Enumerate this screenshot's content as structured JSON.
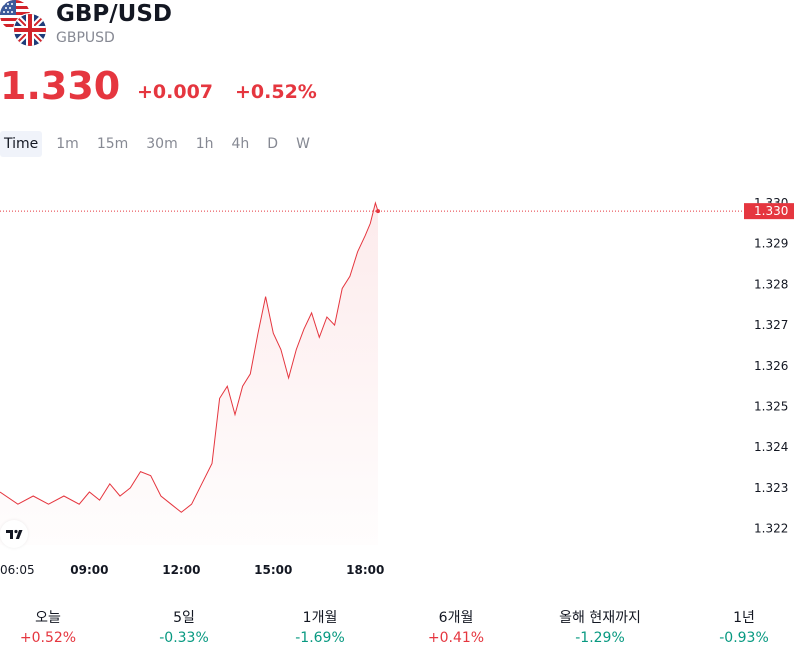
{
  "header": {
    "symbol": "GBP/USD",
    "ticker": "GBPUSD",
    "price": "1.330",
    "change": "+0.007",
    "change_pct": "+0.52%"
  },
  "intervals": [
    "Time",
    "1m",
    "15m",
    "30m",
    "1h",
    "4h",
    "D",
    "W"
  ],
  "active_interval": "Time",
  "colors": {
    "up": "#e5363f",
    "down": "#089981",
    "line": "#e5363f",
    "axis_text": "#131722"
  },
  "icons": [
    "us-flag-icon",
    "uk-flag-icon",
    "tradingview-logo-icon"
  ],
  "chart_data": {
    "type": "area",
    "title": "",
    "xlabel": "",
    "ylabel": "",
    "ylim": [
      1.3215,
      1.3305
    ],
    "x_range": [
      "06:05",
      "18:25"
    ],
    "y_ticks": [
      "1.330",
      "1.329",
      "1.328",
      "1.327",
      "1.326",
      "1.325",
      "1.324",
      "1.323",
      "1.322"
    ],
    "x_ticks": [
      "06:05",
      "09:00",
      "12:00",
      "15:00",
      "18:00"
    ],
    "current_price_label": "1.330",
    "current_price": 1.3298,
    "grid": false,
    "series": [
      {
        "x": [
          "06:05",
          "06:40",
          "07:10",
          "07:40",
          "08:10",
          "08:40",
          "09:00",
          "09:20",
          "09:40",
          "10:00",
          "10:20",
          "10:40",
          "11:00",
          "11:20",
          "11:40",
          "12:00",
          "12:20",
          "12:40",
          "13:00",
          "13:15",
          "13:30",
          "13:45",
          "14:00",
          "14:15",
          "14:30",
          "14:45",
          "15:00",
          "15:15",
          "15:30",
          "15:45",
          "16:00",
          "16:15",
          "16:30",
          "16:45",
          "17:00",
          "17:15",
          "17:30",
          "17:45",
          "18:00",
          "18:10",
          "18:20",
          "18:25"
        ],
        "values": [
          1.3229,
          1.3226,
          1.3228,
          1.3226,
          1.3228,
          1.3226,
          1.3229,
          1.3227,
          1.3231,
          1.3228,
          1.323,
          1.3234,
          1.3233,
          1.3228,
          1.3226,
          1.3224,
          1.3226,
          1.3231,
          1.3236,
          1.3252,
          1.3255,
          1.3248,
          1.3255,
          1.3258,
          1.3268,
          1.3277,
          1.3268,
          1.3264,
          1.3257,
          1.3264,
          1.3269,
          1.3273,
          1.3267,
          1.3272,
          1.327,
          1.3279,
          1.3282,
          1.3288,
          1.3292,
          1.3295,
          1.33,
          1.3298
        ]
      }
    ]
  },
  "performance": [
    {
      "label": "오늘",
      "value": "+0.52%",
      "dir": "up"
    },
    {
      "label": "5일",
      "value": "-0.33%",
      "dir": "down"
    },
    {
      "label": "1개월",
      "value": "-1.69%",
      "dir": "down"
    },
    {
      "label": "6개월",
      "value": "+0.41%",
      "dir": "up"
    },
    {
      "label": "올해 현재까지",
      "value": "-1.29%",
      "dir": "down"
    },
    {
      "label": "1년",
      "value": "-0.93%",
      "dir": "down"
    }
  ]
}
